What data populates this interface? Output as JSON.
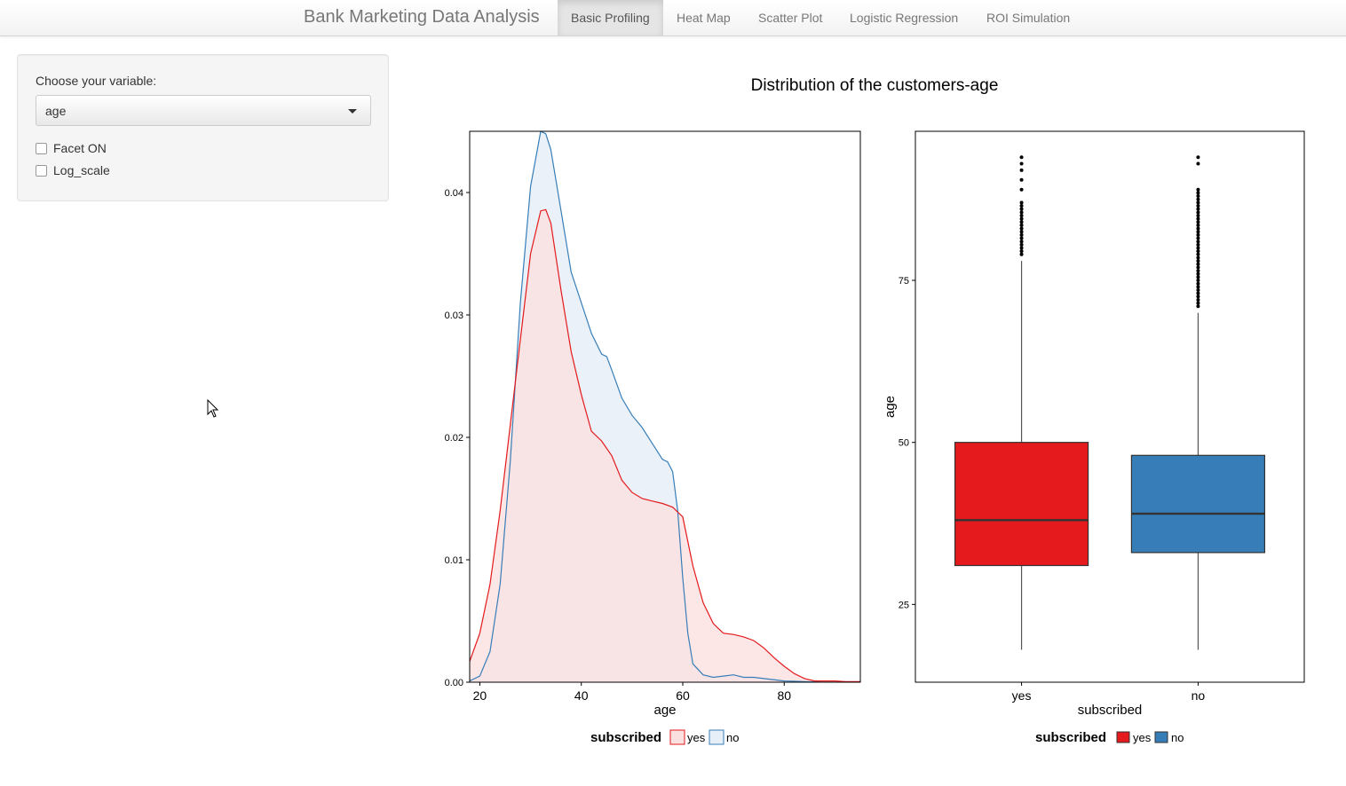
{
  "navbar": {
    "brand": "Bank Marketing Data Analysis",
    "tabs": [
      {
        "label": "Basic Profiling",
        "active": true
      },
      {
        "label": "Heat Map",
        "active": false
      },
      {
        "label": "Scatter Plot",
        "active": false
      },
      {
        "label": "Logistic Regression",
        "active": false
      },
      {
        "label": "ROI Simulation",
        "active": false
      }
    ]
  },
  "sidebar": {
    "select_label": "Choose your variable:",
    "select_value": "age",
    "checkboxes": [
      {
        "label": "Facet ON",
        "checked": false
      },
      {
        "label": "Log_scale",
        "checked": false
      }
    ]
  },
  "plot_title": "Distribution of the customers-age",
  "colors": {
    "yes_line": "#e41a1c",
    "yes_fill": "#fbe0e0",
    "no_line": "#377eb8",
    "no_fill": "#e6eef7",
    "yes_box": "#e41a1c",
    "no_box": "#377eb8"
  },
  "chart_data": [
    {
      "type": "area",
      "xlabel": "age",
      "ylabel": "",
      "xlim": [
        18,
        95
      ],
      "ylim": [
        0,
        0.045
      ],
      "x_ticks": [
        "20",
        "40",
        "60",
        "80"
      ],
      "y_ticks": [
        "0.00",
        "0.01",
        "0.02",
        "0.03",
        "0.04"
      ],
      "legend": {
        "title": "subscribed",
        "entries": [
          "yes",
          "no"
        ],
        "position": "bottom"
      },
      "series": [
        {
          "name": "yes",
          "points": [
            [
              18,
              0.0017
            ],
            [
              20,
              0.004
            ],
            [
              22,
              0.008
            ],
            [
              24,
              0.014
            ],
            [
              26,
              0.021
            ],
            [
              28,
              0.028
            ],
            [
              30,
              0.035
            ],
            [
              32,
              0.0385
            ],
            [
              33,
              0.0386
            ],
            [
              34,
              0.0375
            ],
            [
              36,
              0.032
            ],
            [
              38,
              0.027
            ],
            [
              40,
              0.0235
            ],
            [
              42,
              0.0205
            ],
            [
              44,
              0.0197
            ],
            [
              46,
              0.0185
            ],
            [
              48,
              0.0165
            ],
            [
              50,
              0.0155
            ],
            [
              52,
              0.015
            ],
            [
              54,
              0.0148
            ],
            [
              56,
              0.0146
            ],
            [
              58,
              0.0143
            ],
            [
              60,
              0.0135
            ],
            [
              62,
              0.0095
            ],
            [
              64,
              0.0065
            ],
            [
              66,
              0.0048
            ],
            [
              68,
              0.004
            ],
            [
              70,
              0.0039
            ],
            [
              72,
              0.0037
            ],
            [
              74,
              0.0034
            ],
            [
              76,
              0.0028
            ],
            [
              78,
              0.002
            ],
            [
              80,
              0.0013
            ],
            [
              82,
              0.0007
            ],
            [
              84,
              0.0003
            ],
            [
              86,
              0.0001
            ],
            [
              88,
              0.0001
            ],
            [
              90,
              0.0001
            ],
            [
              92,
              5e-05
            ],
            [
              95,
              5e-05
            ]
          ]
        },
        {
          "name": "no",
          "points": [
            [
              18,
              0.0001
            ],
            [
              20,
              0.0005
            ],
            [
              22,
              0.0025
            ],
            [
              24,
              0.008
            ],
            [
              26,
              0.018
            ],
            [
              28,
              0.031
            ],
            [
              30,
              0.0405
            ],
            [
              32,
              0.045
            ],
            [
              33,
              0.0448
            ],
            [
              34,
              0.0435
            ],
            [
              36,
              0.0385
            ],
            [
              38,
              0.0335
            ],
            [
              40,
              0.031
            ],
            [
              42,
              0.0285
            ],
            [
              44,
              0.0268
            ],
            [
              45,
              0.0266
            ],
            [
              46,
              0.0255
            ],
            [
              48,
              0.0232
            ],
            [
              50,
              0.0218
            ],
            [
              52,
              0.0208
            ],
            [
              54,
              0.0195
            ],
            [
              56,
              0.0182
            ],
            [
              57,
              0.018
            ],
            [
              58,
              0.0172
            ],
            [
              59,
              0.014
            ],
            [
              60,
              0.0085
            ],
            [
              61,
              0.004
            ],
            [
              62,
              0.0015
            ],
            [
              64,
              0.0006
            ],
            [
              66,
              0.0004
            ],
            [
              68,
              0.0005
            ],
            [
              70,
              0.0006
            ],
            [
              72,
              0.0004
            ],
            [
              74,
              0.0004
            ],
            [
              76,
              0.0003
            ],
            [
              80,
              0.0001
            ],
            [
              84,
              5e-05
            ],
            [
              88,
              0.0
            ],
            [
              95,
              0.0
            ]
          ]
        }
      ]
    },
    {
      "type": "box",
      "xlabel": "subscribed",
      "ylabel": "age",
      "ylim": [
        13,
        98
      ],
      "categories": [
        "yes",
        "no"
      ],
      "y_ticks": [
        "25",
        "50",
        "75"
      ],
      "legend": {
        "title": "subscribed",
        "entries": [
          "yes",
          "no"
        ],
        "position": "bottom"
      },
      "series": [
        {
          "name": "yes",
          "min": 18,
          "q1": 31,
          "median": 38,
          "q3": 50,
          "whisker_high": 78,
          "outliers": [
            79,
            79.5,
            80,
            80.5,
            81,
            81.5,
            82,
            82.5,
            83,
            83.5,
            84,
            84.5,
            85,
            85.5,
            86,
            86.5,
            87,
            89,
            90.5,
            92,
            93,
            94
          ]
        },
        {
          "name": "no",
          "min": 18,
          "q1": 33,
          "median": 39,
          "q3": 48,
          "whisker_high": 70,
          "outliers": [
            71,
            71.5,
            72,
            72.5,
            73,
            73.5,
            74,
            74.5,
            75,
            75.5,
            76,
            76.5,
            77,
            77.5,
            78,
            78.5,
            79,
            79.5,
            80,
            80.5,
            81,
            81.5,
            82,
            82.5,
            83,
            83.5,
            84,
            84.5,
            85,
            85.5,
            86,
            86.5,
            87,
            87.5,
            88,
            88.5,
            89,
            93,
            94
          ]
        }
      ]
    }
  ]
}
